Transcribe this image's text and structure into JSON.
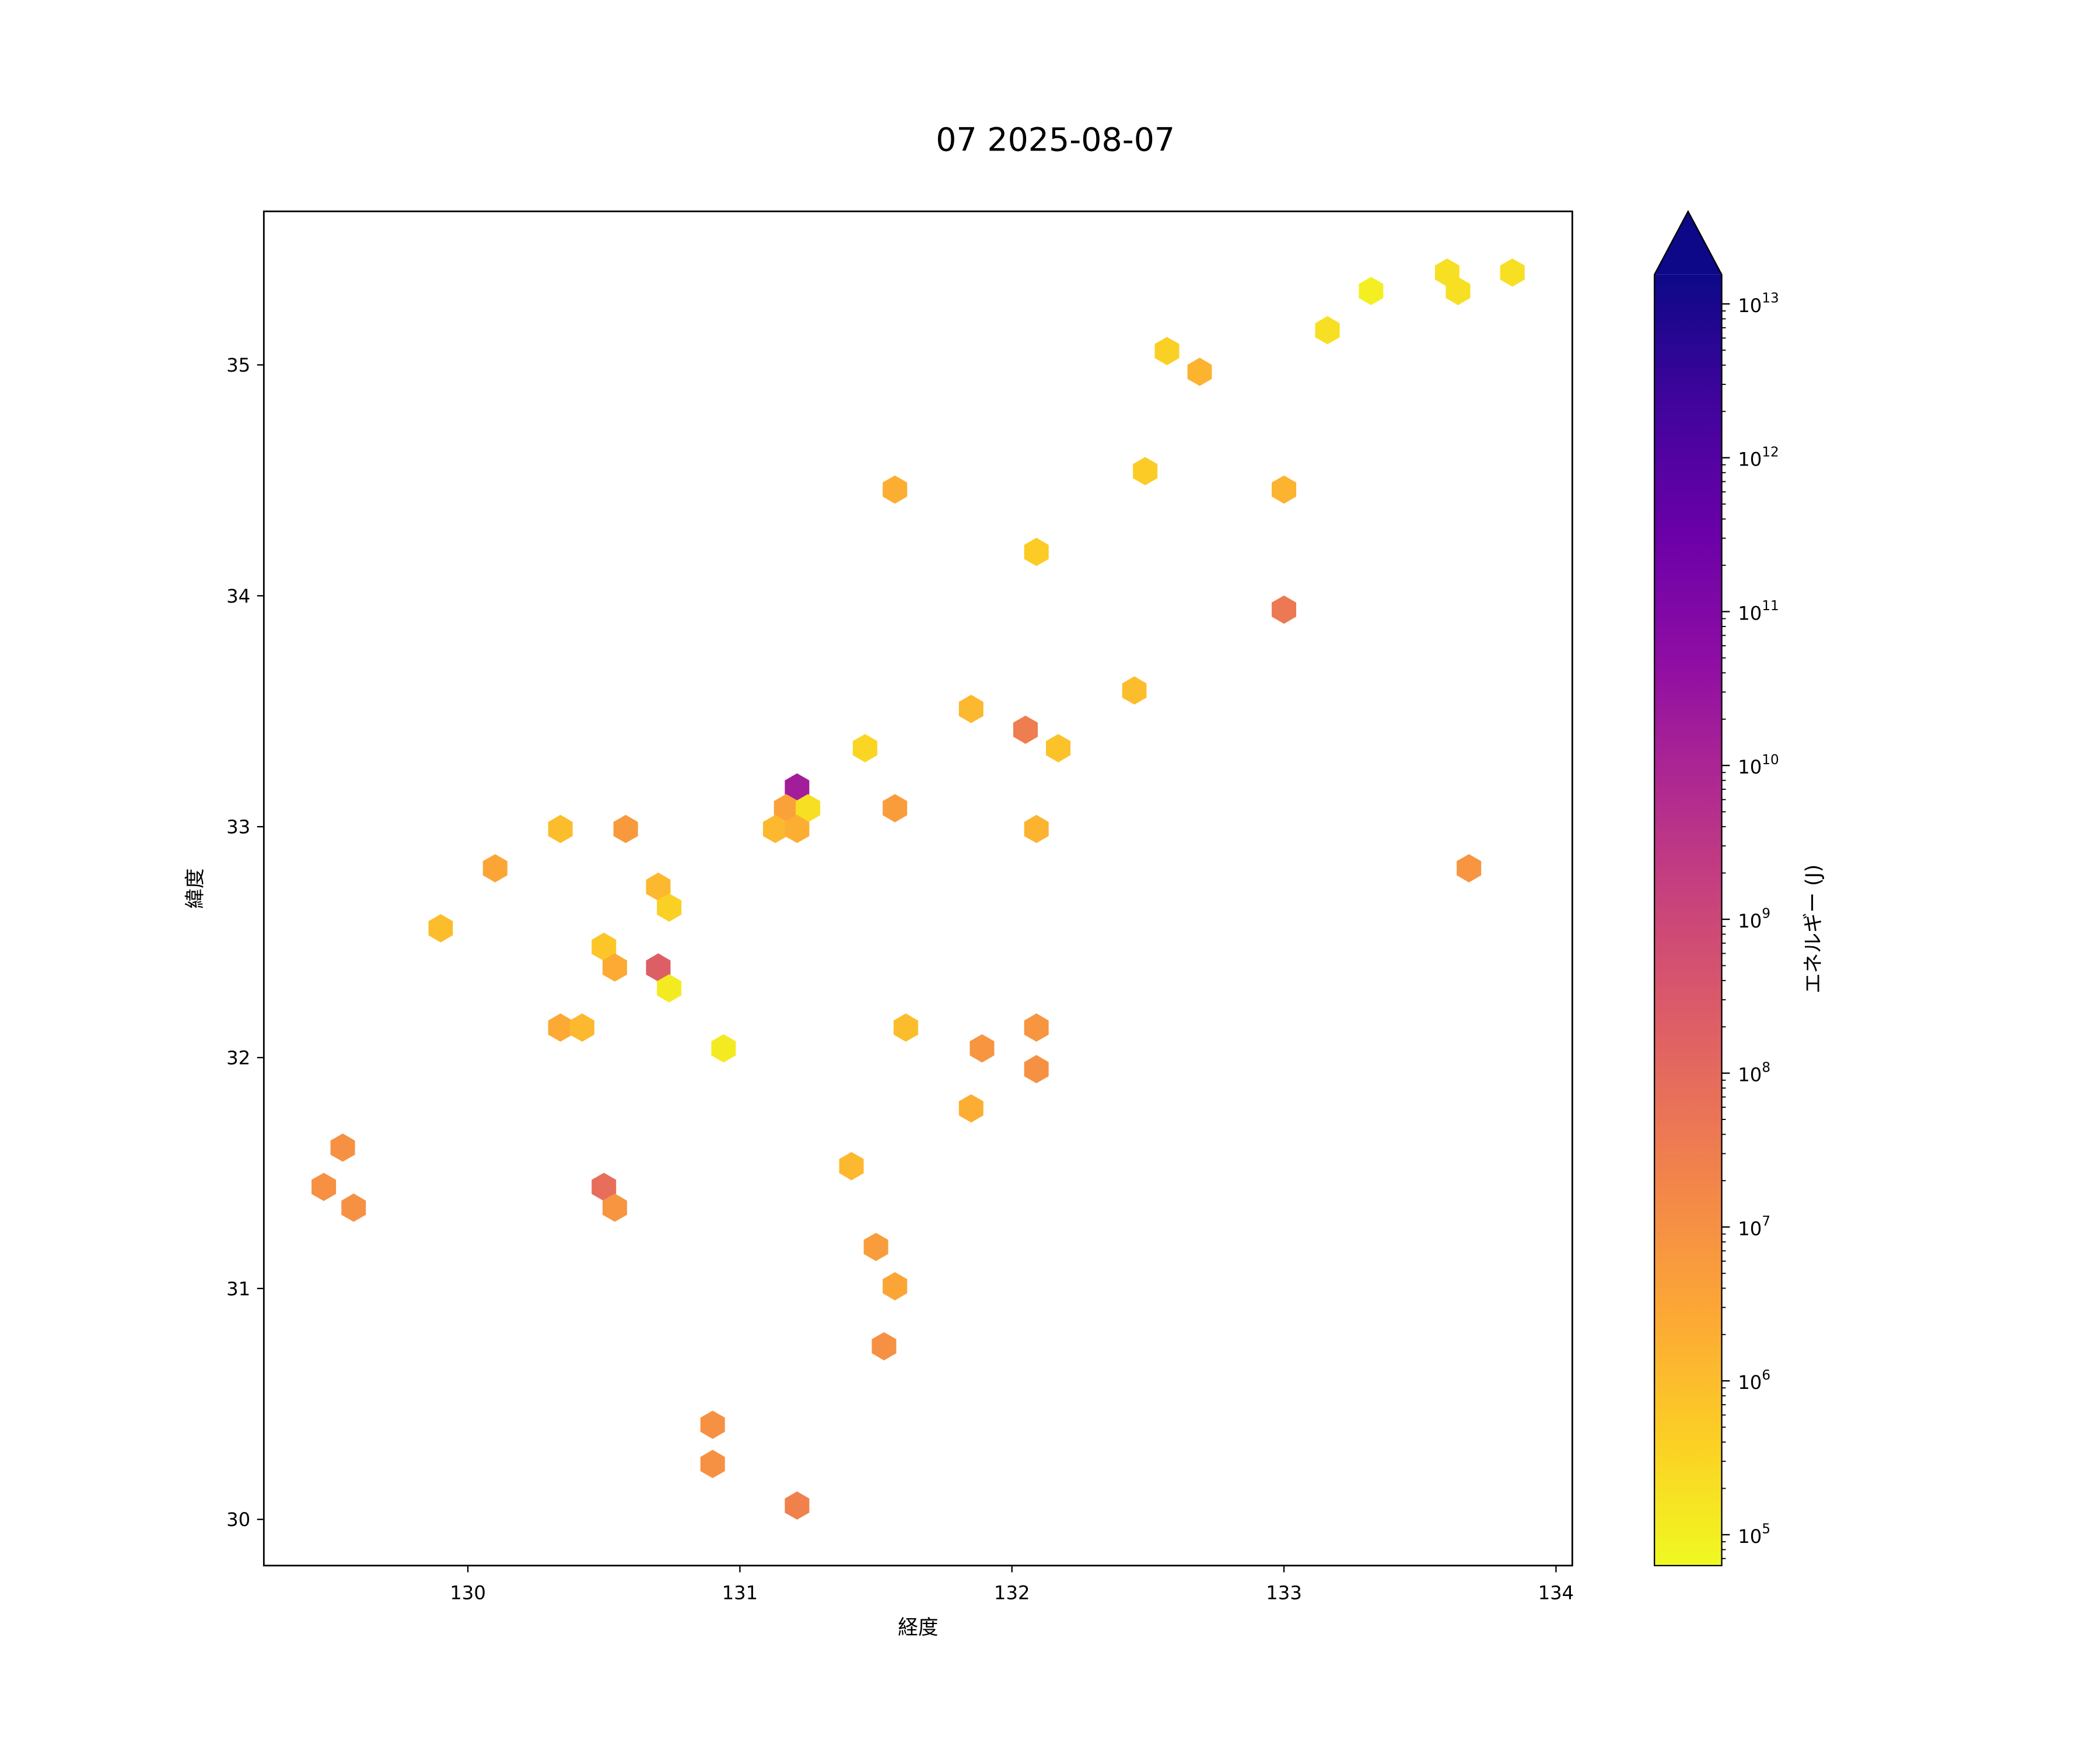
{
  "chart_data": {
    "type": "hexbin",
    "title": "07 2025-08-07",
    "xlabel": "経度",
    "ylabel": "緯度",
    "xlim": [
      129.25,
      134.06
    ],
    "ylim": [
      29.8,
      35.665
    ],
    "xticks": [
      130,
      131,
      132,
      133,
      134
    ],
    "yticks": [
      30,
      31,
      32,
      33,
      34,
      35
    ],
    "grid": false,
    "colormap": "plasma_r",
    "colorbar": {
      "label": "エネルギー (J)",
      "scale": "log",
      "range": [
        63000,
        15500000000000
      ],
      "ticks": [
        "10^5",
        "10^6",
        "10^7",
        "10^8",
        "10^9",
        "10^10",
        "10^11",
        "10^12",
        "10^13"
      ],
      "tick_exponents": [
        5,
        6,
        7,
        8,
        9,
        10,
        11,
        12,
        13
      ],
      "extend": "max",
      "extend_color": "#0d0887"
    },
    "points_note_units": "lon, lat, log10 energy (J)",
    "points": [
      [
        133.84,
        35.4,
        5.3
      ],
      [
        133.6,
        35.4,
        5.3
      ],
      [
        133.64,
        35.32,
        5.3
      ],
      [
        133.32,
        35.32,
        5.0
      ],
      [
        133.16,
        35.15,
        5.3
      ],
      [
        132.57,
        35.06,
        5.6
      ],
      [
        132.69,
        34.97,
        6.2
      ],
      [
        132.49,
        34.54,
        5.7
      ],
      [
        133.0,
        34.46,
        6.2
      ],
      [
        131.57,
        34.46,
        6.3
      ],
      [
        132.09,
        34.19,
        5.7
      ],
      [
        133.0,
        33.94,
        7.6
      ],
      [
        132.45,
        33.59,
        6.0
      ],
      [
        131.85,
        33.51,
        6.1
      ],
      [
        132.05,
        33.42,
        7.5
      ],
      [
        132.17,
        33.34,
        5.9
      ],
      [
        131.46,
        33.34,
        5.5
      ],
      [
        131.21,
        33.17,
        10.2
      ],
      [
        131.17,
        33.08,
        6.6
      ],
      [
        131.25,
        33.08,
        5.3
      ],
      [
        131.57,
        33.08,
        6.7
      ],
      [
        131.13,
        32.99,
        6.1
      ],
      [
        131.21,
        32.99,
        6.3
      ],
      [
        132.09,
        32.99,
        6.2
      ],
      [
        130.34,
        32.99,
        6.0
      ],
      [
        130.58,
        32.99,
        6.8
      ],
      [
        130.1,
        32.82,
        6.5
      ],
      [
        133.68,
        32.82,
        6.9
      ],
      [
        130.7,
        32.74,
        6.1
      ],
      [
        130.74,
        32.65,
        5.6
      ],
      [
        129.9,
        32.56,
        6.0
      ],
      [
        130.5,
        32.48,
        5.8
      ],
      [
        130.54,
        32.39,
        6.4
      ],
      [
        130.7,
        32.39,
        8.3
      ],
      [
        130.74,
        32.3,
        5.1
      ],
      [
        130.34,
        32.13,
        6.4
      ],
      [
        130.42,
        32.13,
        6.1
      ],
      [
        131.61,
        32.13,
        6.0
      ],
      [
        132.09,
        32.13,
        6.9
      ],
      [
        130.94,
        32.04,
        5.1
      ],
      [
        131.89,
        32.04,
        6.9
      ],
      [
        132.09,
        31.95,
        7.0
      ],
      [
        131.85,
        31.78,
        6.3
      ],
      [
        129.54,
        31.61,
        7.0
      ],
      [
        129.47,
        31.44,
        7.0
      ],
      [
        130.5,
        31.44,
        7.9
      ],
      [
        129.58,
        31.35,
        7.0
      ],
      [
        130.54,
        31.35,
        6.9
      ],
      [
        131.41,
        31.53,
        6.1
      ],
      [
        131.5,
        31.18,
        6.7
      ],
      [
        131.57,
        31.01,
        6.5
      ],
      [
        131.53,
        30.75,
        7.0
      ],
      [
        130.9,
        30.41,
        7.0
      ],
      [
        130.9,
        30.24,
        7.0
      ],
      [
        131.21,
        30.06,
        7.4
      ]
    ]
  }
}
